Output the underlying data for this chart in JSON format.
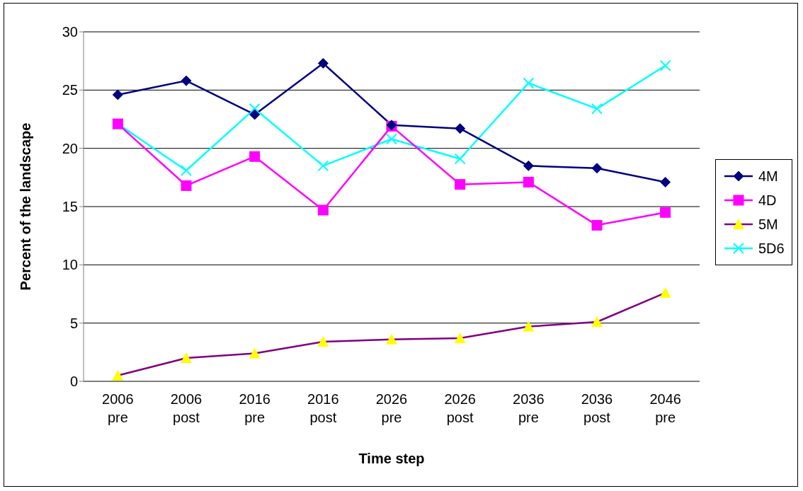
{
  "chart_data": {
    "type": "line",
    "xlabel": "Time step",
    "ylabel": "Percent of the landscape",
    "categories": [
      "2006 pre",
      "2006 post",
      "2016 pre",
      "2016 post",
      "2026 pre",
      "2026 post",
      "2036 pre",
      "2036 post",
      "2046 pre"
    ],
    "ylim": [
      0,
      30
    ],
    "yticks": [
      0,
      5,
      10,
      15,
      20,
      25,
      30
    ],
    "grid": "y",
    "legend": "right",
    "series": [
      {
        "name": "4M",
        "color": "#000080",
        "marker": "diamond",
        "values": [
          24.6,
          25.8,
          22.9,
          27.3,
          22.0,
          21.7,
          18.5,
          18.3,
          17.1
        ]
      },
      {
        "name": "4D",
        "color": "#ff00ff",
        "marker": "square",
        "values": [
          22.1,
          16.8,
          19.3,
          14.7,
          21.9,
          16.9,
          17.1,
          13.4,
          14.5
        ]
      },
      {
        "name": "5M",
        "color": "#800080",
        "colors": [
          "#ffff00",
          "#ffff00",
          "#ffff00",
          "#ffff00",
          "#ffff00",
          "#ffff00",
          "#ffff00",
          "#ffff00",
          "#ffff00"
        ],
        "marker": "triangle",
        "values": [
          0.5,
          2.0,
          2.4,
          3.4,
          3.6,
          3.7,
          4.7,
          5.1,
          7.6
        ]
      },
      {
        "name": "5D6",
        "color": "#00ffff",
        "marker": "cross",
        "values": [
          22.1,
          18.1,
          23.4,
          18.5,
          20.8,
          19.1,
          25.6,
          23.4,
          27.1
        ]
      }
    ]
  }
}
